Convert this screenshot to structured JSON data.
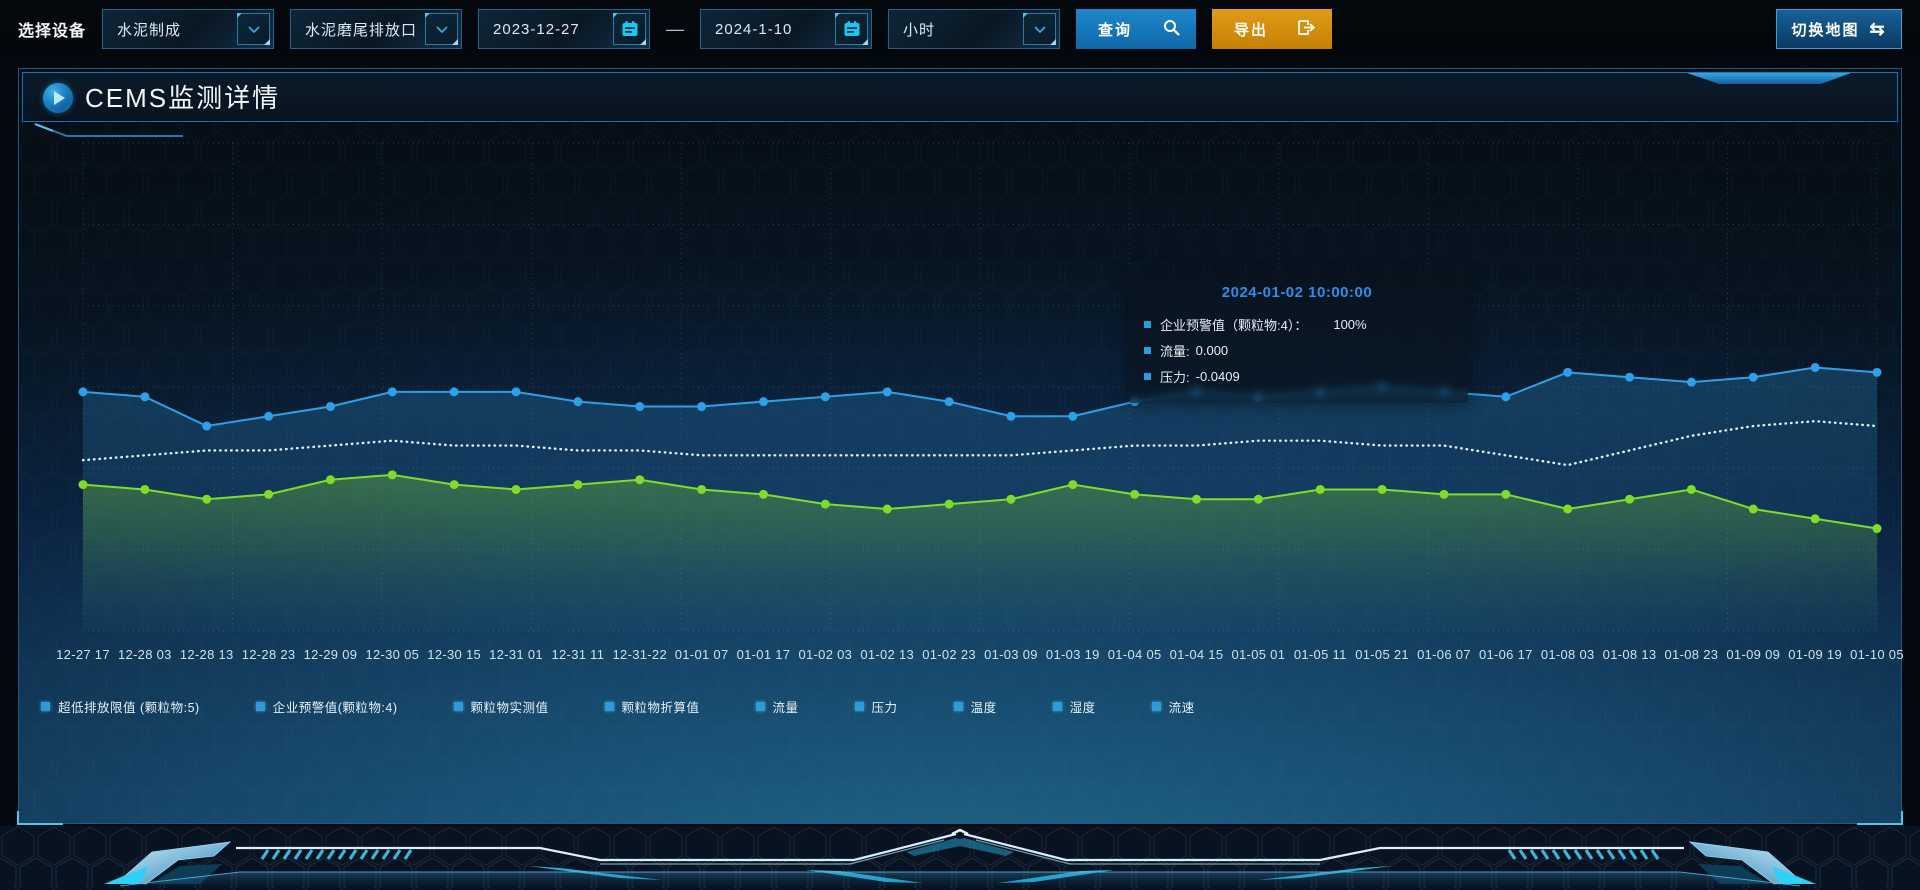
{
  "toolbar": {
    "device_label": "选择设备",
    "selects": [
      {
        "value": "水泥制成"
      },
      {
        "value": "水泥磨尾排放口"
      },
      {
        "value": "小时"
      }
    ],
    "date_from": "2023-12-27",
    "date_separator": "—",
    "date_to": "2024-1-10",
    "query_label": "查询",
    "export_label": "导出",
    "switch_map_label": "切换地图",
    "switch_map_glyph": "⇆"
  },
  "panel": {
    "title": "CEMS监测详情"
  },
  "tooltip": {
    "title": "2024-01-02 10:00:00",
    "items": [
      {
        "label": "企业预警值（颗粒物:4）：",
        "value": "100%",
        "marker_color": "#2d9be0"
      },
      {
        "label": "流量:",
        "value": "0.000",
        "marker_color": "#2d9be0"
      },
      {
        "label": "压力:",
        "value": "-0.0409",
        "marker_color": "#2d9be0"
      }
    ]
  },
  "legend": {
    "marker_color": "#2e9bd6",
    "items": [
      "超低排放限值 (颗粒物:5)",
      "企业预警值(颗粒物:4)",
      "颗粒物实测值",
      "颗粒物折算值",
      "流量",
      "压力",
      "温度",
      "湿度",
      "流速"
    ]
  },
  "chart_data": {
    "type": "line",
    "title": "CEMS监测详情",
    "x_labels": [
      "12-27 17",
      "12-28 03",
      "12-28 13",
      "12-28 23",
      "12-29 09",
      "12-30 05",
      "12-30 15",
      "12-31 01",
      "12-31 11",
      "12-31-22",
      "01-01 07",
      "01-01 17",
      "01-02 03",
      "01-02 13",
      "01-02 23",
      "01-03 09",
      "01-03 19",
      "01-04 05",
      "01-04 15",
      "01-05 01",
      "01-05 11",
      "01-05 21",
      "01-06 07",
      "01-06 17",
      "01-08 03",
      "01-08 13",
      "01-08 23",
      "01-09 09",
      "01-09 19",
      "01-10 05"
    ],
    "y_axis_visible": false,
    "ylim": [
      0,
      100
    ],
    "grid": {
      "rows": 6,
      "cols": 12,
      "style": "dotted"
    },
    "legend_position": "bottom",
    "series": [
      {
        "name": "企业预警值(颗粒物:4)",
        "color": "#2da0e8",
        "line": "solid",
        "markers": true,
        "area": true,
        "values": [
          49,
          48,
          42,
          44,
          46,
          49,
          49,
          49,
          47,
          46,
          46,
          47,
          48,
          49,
          47,
          44,
          44,
          47,
          49,
          48,
          49,
          50,
          49,
          48,
          53,
          52,
          51,
          52,
          54,
          53
        ]
      },
      {
        "name": "压力",
        "color": "#e9f3f7",
        "line": "dotted",
        "markers": false,
        "area": false,
        "values": [
          35,
          36,
          37,
          37,
          38,
          39,
          38,
          38,
          37,
          37,
          36,
          36,
          36,
          36,
          36,
          36,
          37,
          38,
          38,
          39,
          39,
          38,
          38,
          36,
          34,
          37,
          40,
          42,
          43,
          42
        ]
      },
      {
        "name": "流量",
        "color": "#80dc28",
        "line": "solid",
        "markers": true,
        "area": true,
        "values": [
          30,
          29,
          27,
          28,
          31,
          32,
          30,
          29,
          30,
          31,
          29,
          28,
          26,
          25,
          26,
          27,
          30,
          28,
          27,
          27,
          29,
          29,
          28,
          28,
          25,
          27,
          29,
          25,
          23,
          21
        ]
      }
    ],
    "hidden_series": [
      "超低排放限值 (颗粒物:5)",
      "颗粒物实测值",
      "颗粒物折算值",
      "温度",
      "湿度",
      "流速"
    ]
  },
  "colors": {
    "accent_blue": "#2da0e8",
    "accent_green": "#80dc28",
    "dotted_white": "#e9f3f7",
    "export_orange": "#d8930e",
    "tooltip_title": "#2d8fe8",
    "panel_border": "#1d5a85"
  }
}
